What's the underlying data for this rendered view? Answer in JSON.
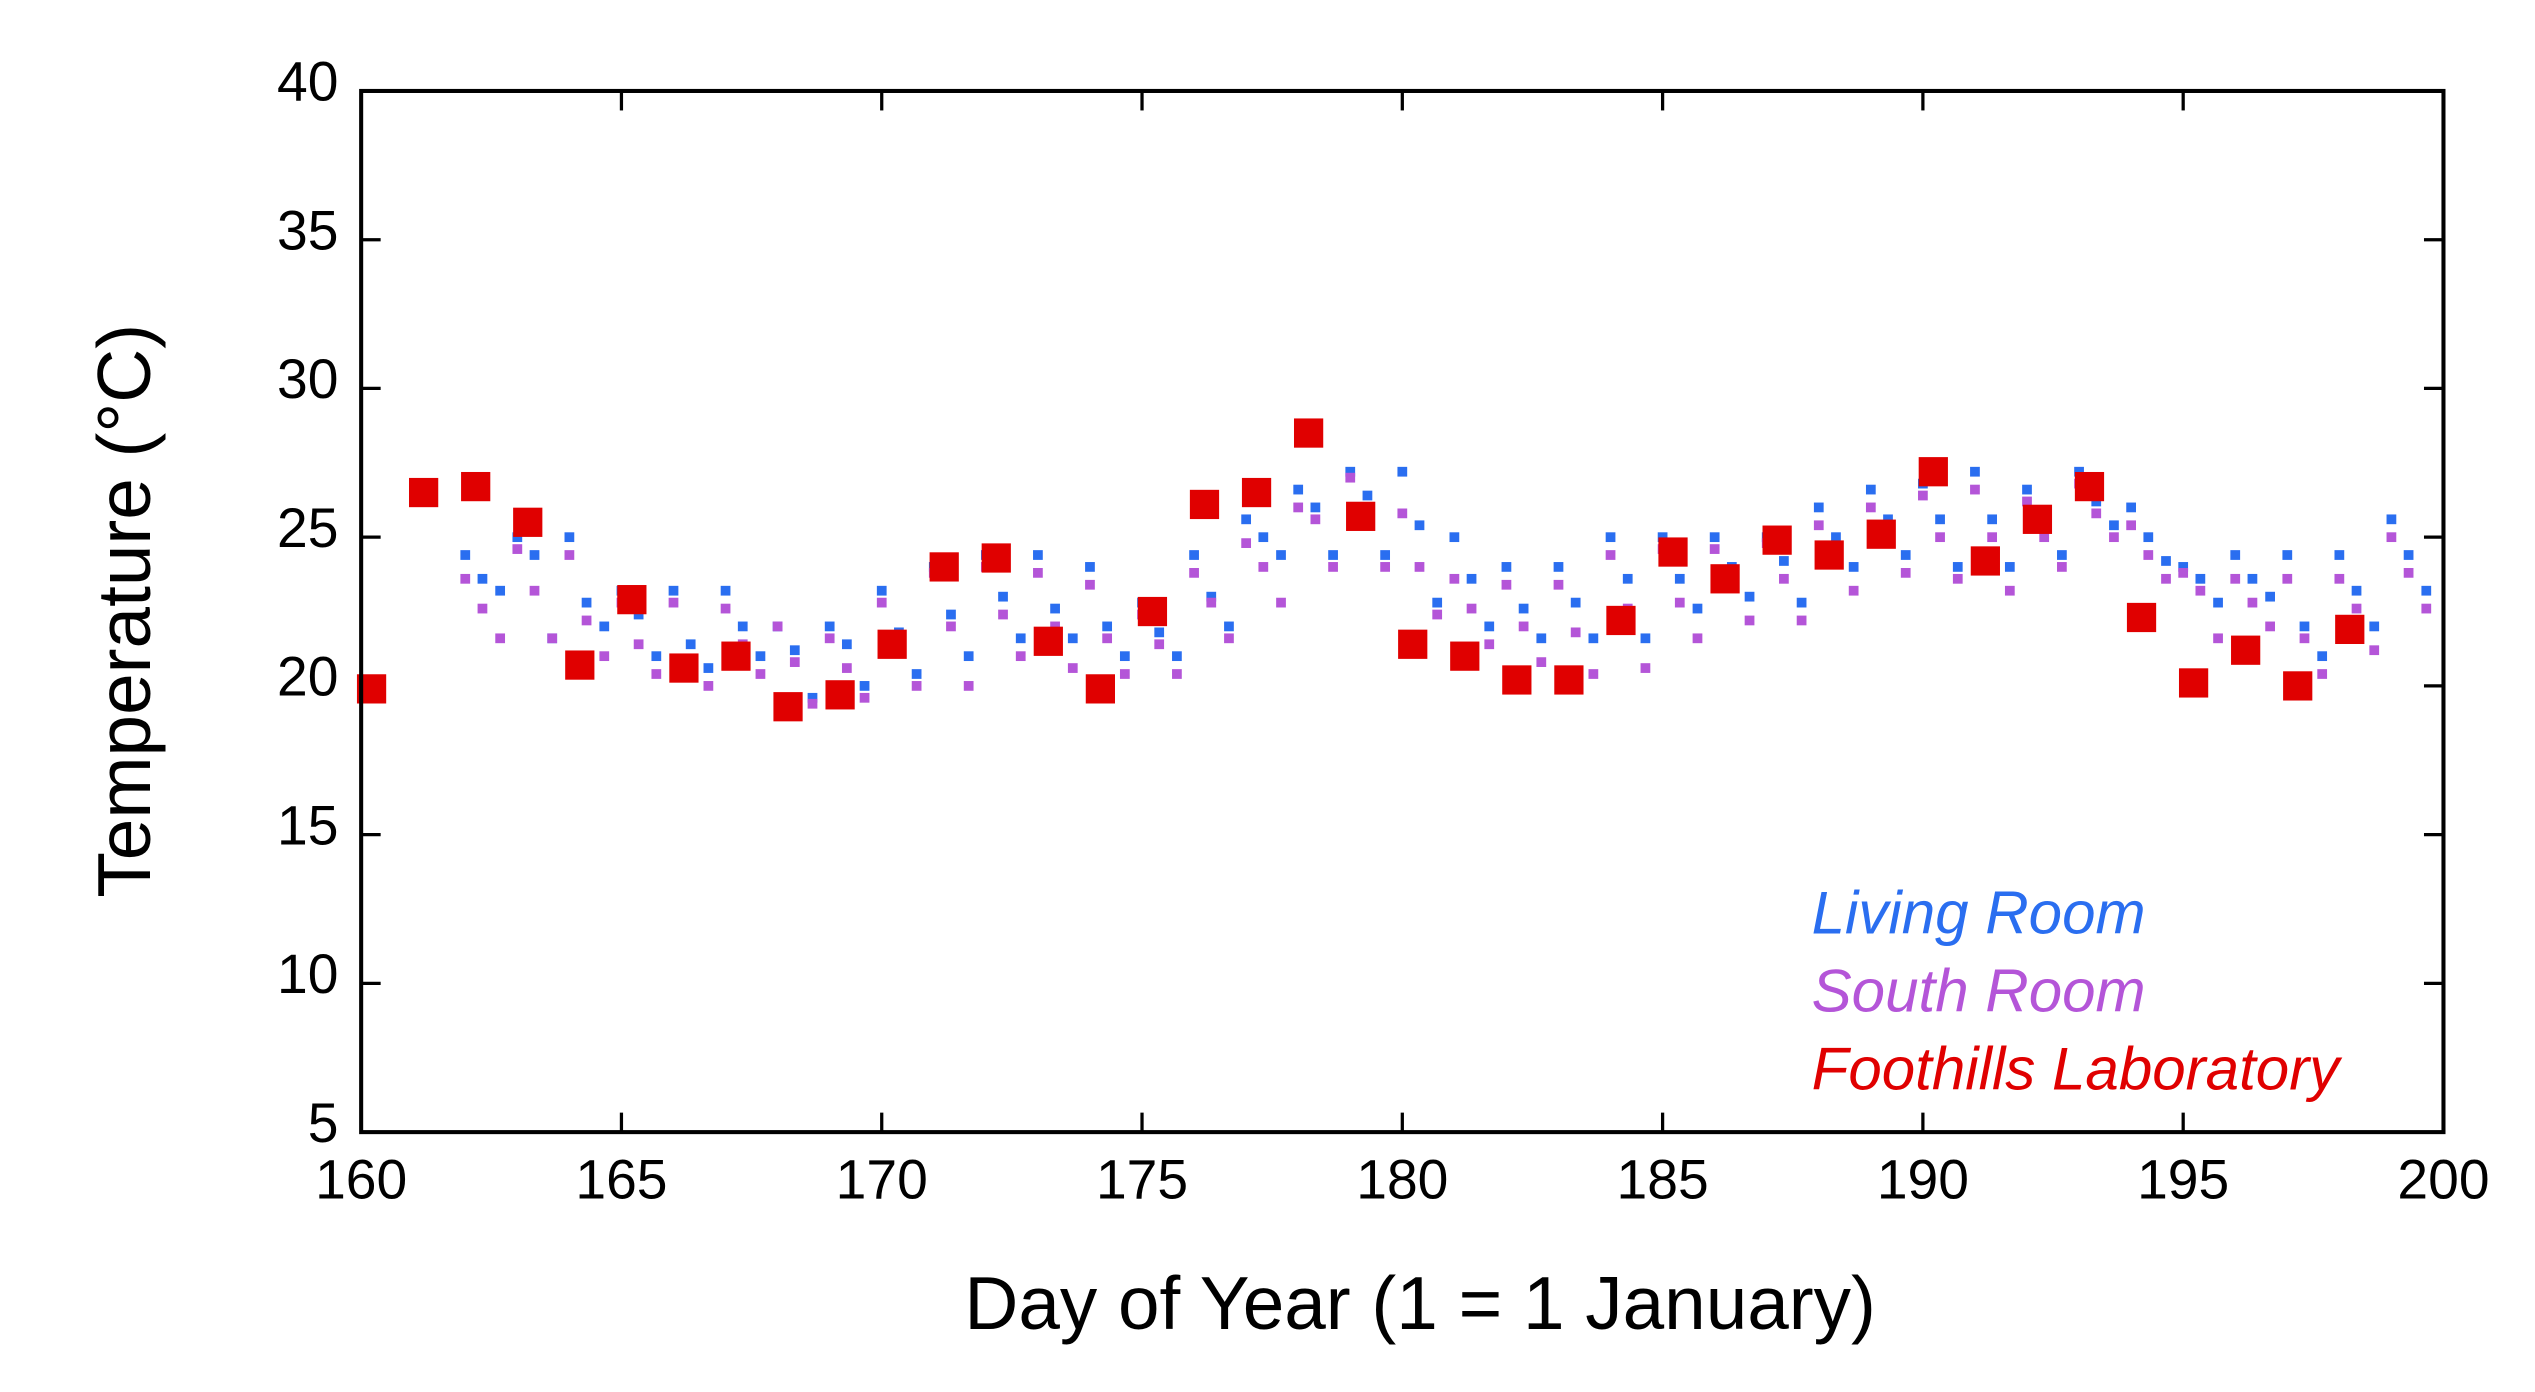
{
  "chart_data": {
    "type": "scatter",
    "xlabel": "Day of Year (1 = 1 January)",
    "ylabel": "Temperature (°C)",
    "xlim": [
      160,
      200
    ],
    "xticks": [
      160,
      165,
      170,
      175,
      180,
      185,
      190,
      195,
      200
    ],
    "ylim": [
      5,
      40
    ],
    "yticks": [
      5,
      10,
      15,
      20,
      25,
      30,
      35,
      40
    ],
    "legend": "lower right",
    "series": [
      {
        "name": "Living Room",
        "color": "#2a6ef0",
        "marker_size": 6,
        "x": [
          162,
          162.33,
          162.67,
          163,
          163.33,
          163.67,
          164,
          164.33,
          164.67,
          165,
          165.33,
          165.67,
          166,
          166.33,
          166.67,
          167,
          167.33,
          167.67,
          168,
          168.33,
          168.67,
          169,
          169.33,
          169.67,
          170,
          170.33,
          170.67,
          171,
          171.33,
          171.67,
          172,
          172.33,
          172.67,
          173,
          173.33,
          173.67,
          174,
          174.33,
          174.67,
          175,
          175.33,
          175.67,
          176,
          176.33,
          176.67,
          177,
          177.33,
          177.67,
          178,
          178.33,
          178.67,
          179,
          179.33,
          179.67,
          180,
          180.33,
          180.67,
          181,
          181.33,
          181.67,
          182,
          182.33,
          182.67,
          183,
          183.33,
          183.67,
          184,
          184.33,
          184.67,
          185,
          185.33,
          185.67,
          186,
          186.33,
          186.67,
          187,
          187.33,
          187.67,
          188,
          188.33,
          188.67,
          189,
          189.33,
          189.67,
          190,
          190.33,
          190.67,
          191,
          191.33,
          191.67,
          192,
          192.33,
          192.67,
          193,
          193.33,
          193.67,
          194,
          194.33,
          194.67,
          195,
          195.33,
          195.67,
          196,
          196.33,
          196.67,
          197,
          197.33,
          197.67,
          198,
          198.33,
          198.67,
          199,
          199.33,
          199.67
        ],
        "values": [
          24.4,
          23.6,
          23.2,
          25.0,
          24.4,
          21.6,
          25.0,
          22.8,
          22.0,
          23.2,
          22.4,
          21.0,
          23.2,
          21.4,
          20.6,
          23.2,
          22.0,
          21.0,
          22.0,
          21.2,
          19.6,
          22.0,
          21.4,
          20.0,
          23.2,
          21.8,
          20.4,
          24.0,
          22.4,
          21.0,
          24.4,
          23.0,
          21.6,
          24.4,
          22.6,
          21.6,
          24.0,
          22.0,
          21.0,
          22.8,
          21.8,
          21.0,
          24.4,
          23.0,
          22.0,
          25.6,
          25.0,
          24.4,
          26.6,
          26.0,
          24.4,
          27.2,
          26.4,
          24.4,
          27.2,
          25.4,
          22.8,
          25.0,
          23.6,
          22.0,
          24.0,
          22.6,
          21.6,
          24.0,
          22.8,
          21.6,
          25.0,
          23.6,
          21.6,
          25.0,
          23.6,
          22.6,
          25.0,
          24.0,
          23.0,
          25.0,
          24.2,
          22.8,
          26.0,
          25.0,
          24.0,
          26.6,
          25.6,
          24.4,
          26.8,
          25.6,
          24.0,
          27.2,
          25.6,
          24.0,
          26.6,
          25.6,
          24.4,
          27.2,
          26.2,
          25.4,
          26.0,
          25.0,
          24.2,
          24.0,
          23.6,
          22.8,
          24.4,
          23.6,
          23.0,
          24.4,
          22.0,
          21.0,
          24.4,
          23.2,
          22.0,
          25.6,
          24.4,
          23.2
        ]
      },
      {
        "name": "South Room",
        "color": "#b455d8",
        "marker_size": 6,
        "x": [
          162,
          162.33,
          162.67,
          163,
          163.33,
          163.67,
          164,
          164.33,
          164.67,
          165,
          165.33,
          165.67,
          166,
          166.33,
          166.67,
          167,
          167.33,
          167.67,
          168,
          168.33,
          168.67,
          169,
          169.33,
          169.67,
          170,
          170.33,
          170.67,
          171,
          171.33,
          171.67,
          172,
          172.33,
          172.67,
          173,
          173.33,
          173.67,
          174,
          174.33,
          174.67,
          175,
          175.33,
          175.67,
          176,
          176.33,
          176.67,
          177,
          177.33,
          177.67,
          178,
          178.33,
          178.67,
          179,
          179.33,
          179.67,
          180,
          180.33,
          180.67,
          181,
          181.33,
          181.67,
          182,
          182.33,
          182.67,
          183,
          183.33,
          183.67,
          184,
          184.33,
          184.67,
          185,
          185.33,
          185.67,
          186,
          186.33,
          186.67,
          187,
          187.33,
          187.67,
          188,
          188.33,
          188.67,
          189,
          189.33,
          189.67,
          190,
          190.33,
          190.67,
          191,
          191.33,
          191.67,
          192,
          192.33,
          192.67,
          193,
          193.33,
          193.67,
          194,
          194.33,
          194.67,
          195,
          195.33,
          195.67,
          196,
          196.33,
          196.67,
          197,
          197.33,
          197.67,
          198,
          198.33,
          198.67,
          199,
          199.33,
          199.67
        ],
        "values": [
          23.6,
          22.6,
          21.6,
          24.6,
          23.2,
          21.6,
          24.4,
          22.2,
          21.0,
          22.8,
          21.4,
          20.4,
          22.8,
          20.8,
          20.0,
          22.6,
          21.4,
          20.4,
          22.0,
          20.8,
          19.4,
          21.6,
          20.6,
          19.6,
          22.8,
          21.2,
          20.0,
          23.8,
          22.0,
          20.0,
          24.0,
          22.4,
          21.0,
          23.8,
          22.0,
          20.6,
          23.4,
          21.6,
          20.4,
          22.4,
          21.4,
          20.4,
          23.8,
          22.8,
          21.6,
          24.8,
          24.0,
          22.8,
          26.0,
          25.6,
          24.0,
          27.0,
          26.0,
          24.0,
          25.8,
          24.0,
          22.4,
          23.6,
          22.6,
          21.4,
          23.4,
          22.0,
          20.8,
          23.4,
          21.8,
          20.4,
          24.4,
          22.6,
          20.6,
          24.6,
          22.8,
          21.6,
          24.6,
          23.4,
          22.2,
          24.8,
          23.6,
          22.2,
          25.4,
          24.4,
          23.2,
          26.0,
          25.0,
          23.8,
          26.4,
          25.0,
          23.6,
          26.6,
          25.0,
          23.2,
          26.2,
          25.0,
          24.0,
          26.8,
          25.8,
          25.0,
          25.4,
          24.4,
          23.6,
          23.8,
          23.2,
          21.6,
          23.6,
          22.8,
          22.0,
          23.6,
          21.6,
          20.4,
          23.6,
          22.6,
          21.2,
          25.0,
          23.8,
          22.6
        ]
      },
      {
        "name": "Foothills Laboratory",
        "color": "#e00000",
        "marker_size": 18,
        "x": [
          160.2,
          161.2,
          162.2,
          163.2,
          164.2,
          165.2,
          166.2,
          167.2,
          168.2,
          169.2,
          170.2,
          171.2,
          172.2,
          173.2,
          174.2,
          175.2,
          176.2,
          177.2,
          178.2,
          179.2,
          180.2,
          181.2,
          182.2,
          183.2,
          184.2,
          185.2,
          186.2,
          187.2,
          188.2,
          189.2,
          190.2,
          191.2,
          192.2,
          193.2,
          194.2,
          195.2,
          196.2,
          197.2,
          198.2
        ],
        "values": [
          19.9,
          26.5,
          26.7,
          25.5,
          20.7,
          22.9,
          20.6,
          21.0,
          19.3,
          19.7,
          21.4,
          24.0,
          24.3,
          21.5,
          19.9,
          22.5,
          26.1,
          26.5,
          28.5,
          25.7,
          21.4,
          21.0,
          20.2,
          20.2,
          22.2,
          24.5,
          23.6,
          24.9,
          24.4,
          25.1,
          27.2,
          24.2,
          25.6,
          26.7,
          22.3,
          20.1,
          21.2,
          20.0,
          21.9
        ]
      }
    ]
  }
}
